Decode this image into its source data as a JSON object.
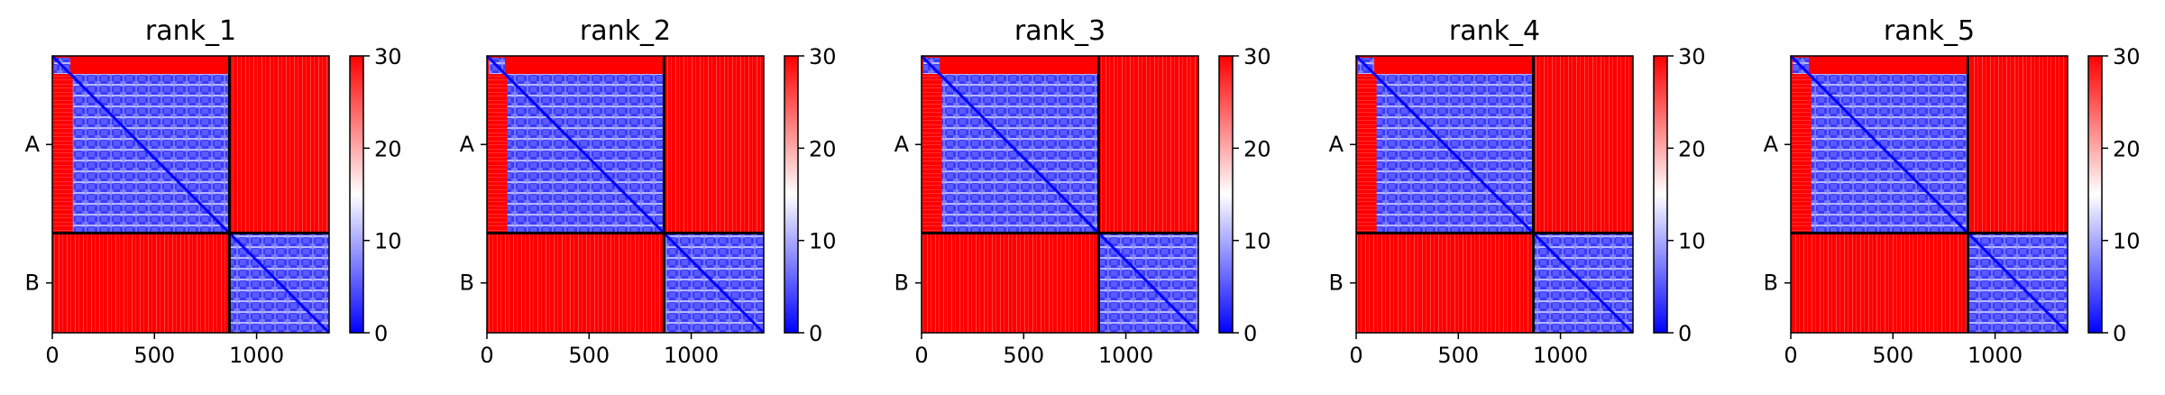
{
  "chart_data": [
    {
      "type": "heatmap",
      "title": "rank_1",
      "x_ticks": [
        "0",
        "500",
        "1000"
      ],
      "x_tick_values": [
        0,
        500,
        1000
      ],
      "y_tick_labels": [
        "A",
        "B"
      ],
      "chain_boundary": 867,
      "n_residues": 1355,
      "vmin": 0,
      "vmax": 30,
      "colorbar_ticks": [
        "0",
        "10",
        "20",
        "30"
      ],
      "colormap": [
        "#0000ff",
        "#ffffff",
        "#ff0000"
      ]
    },
    {
      "type": "heatmap",
      "title": "rank_2",
      "x_ticks": [
        "0",
        "500",
        "1000"
      ],
      "x_tick_values": [
        0,
        500,
        1000
      ],
      "y_tick_labels": [
        "A",
        "B"
      ],
      "chain_boundary": 867,
      "n_residues": 1355,
      "vmin": 0,
      "vmax": 30,
      "colorbar_ticks": [
        "0",
        "10",
        "20",
        "30"
      ],
      "colormap": [
        "#0000ff",
        "#ffffff",
        "#ff0000"
      ]
    },
    {
      "type": "heatmap",
      "title": "rank_3",
      "x_ticks": [
        "0",
        "500",
        "1000"
      ],
      "x_tick_values": [
        0,
        500,
        1000
      ],
      "y_tick_labels": [
        "A",
        "B"
      ],
      "chain_boundary": 867,
      "n_residues": 1355,
      "vmin": 0,
      "vmax": 30,
      "colorbar_ticks": [
        "0",
        "10",
        "20",
        "30"
      ],
      "colormap": [
        "#0000ff",
        "#ffffff",
        "#ff0000"
      ]
    },
    {
      "type": "heatmap",
      "title": "rank_4",
      "x_ticks": [
        "0",
        "500",
        "1000"
      ],
      "x_tick_values": [
        0,
        500,
        1000
      ],
      "y_tick_labels": [
        "A",
        "B"
      ],
      "chain_boundary": 867,
      "n_residues": 1355,
      "vmin": 0,
      "vmax": 30,
      "colorbar_ticks": [
        "0",
        "10",
        "20",
        "30"
      ],
      "colormap": [
        "#0000ff",
        "#ffffff",
        "#ff0000"
      ]
    },
    {
      "type": "heatmap",
      "title": "rank_5",
      "x_ticks": [
        "0",
        "500",
        "1000"
      ],
      "x_tick_values": [
        0,
        500,
        1000
      ],
      "y_tick_labels": [
        "A",
        "B"
      ],
      "chain_boundary": 867,
      "n_residues": 1355,
      "vmin": 0,
      "vmax": 30,
      "colorbar_ticks": [
        "0",
        "10",
        "20",
        "30"
      ],
      "colormap": [
        "#0000ff",
        "#ffffff",
        "#ff0000"
      ]
    }
  ]
}
